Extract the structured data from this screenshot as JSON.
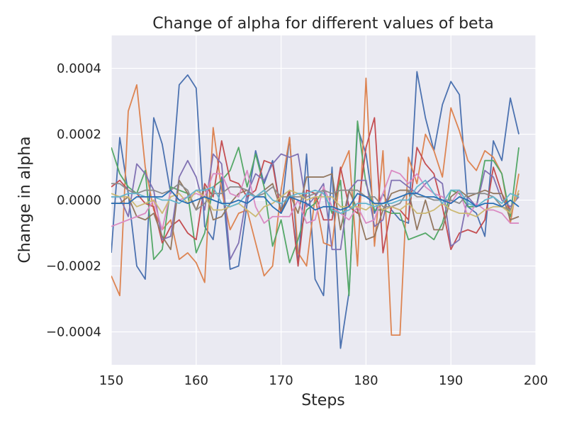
{
  "chart_data": {
    "type": "line",
    "title": "Change of  alpha for different values of beta",
    "xlabel": "Steps",
    "ylabel": "Change in alpha",
    "xlim": [
      150,
      200
    ],
    "ylim": [
      -0.0005,
      0.0005
    ],
    "xticks": [
      150,
      160,
      170,
      180,
      190,
      200
    ],
    "yticks": [
      -0.0004,
      -0.0002,
      0,
      0.0002,
      0.0004
    ],
    "ytick_labels": [
      "−0.0004",
      "−0.0002",
      "0.0000",
      "0.0002",
      "0.0004"
    ],
    "grid": true,
    "background": "#eaeaf2",
    "x": [
      150,
      151,
      152,
      153,
      154,
      155,
      156,
      157,
      158,
      159,
      160,
      161,
      162,
      163,
      164,
      165,
      166,
      167,
      168,
      169,
      170,
      171,
      172,
      173,
      174,
      175,
      176,
      177,
      178,
      179,
      180,
      181,
      182,
      183,
      184,
      185,
      186,
      187,
      188,
      189,
      190,
      191,
      192,
      193,
      194,
      195,
      196,
      197,
      198
    ],
    "series": [
      {
        "color": "#4c72b0",
        "values": [
          -0.00016,
          0.00019,
          2e-05,
          -0.0002,
          -0.00024,
          0.00025,
          0.00017,
          2e-05,
          0.00035,
          0.00038,
          0.00034,
          -8e-05,
          -0.00012,
          7e-05,
          -0.00021,
          -0.0002,
          -1e-05,
          0.00015,
          5e-05,
          0.00012,
          -4e-05,
          0.00019,
          -0.0002,
          0.00014,
          -0.00024,
          -0.00029,
          0.0001,
          -0.00045,
          -0.00028,
          0.00022,
          0.00014,
          -4e-05,
          2e-05,
          -3e-05,
          -6e-05,
          -7e-05,
          0.00039,
          0.00025,
          0.00015,
          0.00029,
          0.00036,
          0.00032,
          -2e-05,
          -4e-05,
          -0.00011,
          0.00018,
          0.00012,
          0.00031,
          0.0002
        ]
      },
      {
        "color": "#dd8452",
        "values": [
          -0.00023,
          -0.00029,
          0.00027,
          0.00035,
          0.0001,
          -3e-05,
          -9e-05,
          -6e-05,
          -0.00018,
          -0.00016,
          -0.00019,
          -0.00025,
          0.00022,
          3e-05,
          -9e-05,
          -4e-05,
          -3e-05,
          -0.00013,
          -0.00023,
          -0.0002,
          3e-05,
          0.00019,
          -0.00016,
          -0.0002,
          1e-05,
          -0.00013,
          -0.00014,
          9e-05,
          0.00015,
          -0.0002,
          0.00037,
          -0.00014,
          0.00015,
          -0.00041,
          -0.00041,
          0.00013,
          5e-05,
          0.0002,
          0.00015,
          7e-05,
          0.00028,
          0.00021,
          0.00012,
          9e-05,
          0.00015,
          0.00013,
          8e-05,
          -7e-05,
          8e-05
        ]
      },
      {
        "color": "#55a868",
        "values": [
          0.00016,
          8e-05,
          4e-05,
          2e-05,
          9e-05,
          -0.00018,
          -0.00015,
          4e-05,
          3e-05,
          2e-05,
          -0.00016,
          -0.0001,
          4e-05,
          6e-05,
          9e-05,
          0.00016,
          4e-05,
          0.00014,
          4e-05,
          -0.00014,
          -6e-05,
          -0.00019,
          -0.00012,
          -3e-05,
          -1e-05,
          3e-05,
          -4e-05,
          6e-05,
          -0.00029,
          0.00024,
          5e-05,
          -3e-05,
          -3e-05,
          -4e-05,
          -4e-05,
          -0.00012,
          -0.00011,
          -0.0001,
          -0.00012,
          -7e-05,
          3e-05,
          2e-05,
          -2e-05,
          -2e-05,
          0.00012,
          0.00012,
          8e-05,
          -5e-05,
          0.00016
        ]
      },
      {
        "color": "#c44e52",
        "values": [
          4e-05,
          6e-05,
          3e-05,
          2e-05,
          -1e-05,
          -2e-05,
          -0.00013,
          -8e-05,
          -6e-05,
          -0.0001,
          -0.00012,
          5e-05,
          1e-05,
          0.00018,
          6e-05,
          5e-05,
          1e-05,
          3e-05,
          0.00012,
          0.00011,
          -4e-05,
          3e-05,
          -0.0002,
          3e-05,
          2e-05,
          -6e-05,
          -6e-05,
          0.0001,
          -2e-05,
          -4e-05,
          0.00016,
          0.00025,
          -0.00016,
          -2e-05,
          -3e-05,
          -6e-05,
          0.00016,
          0.00011,
          8e-05,
          -2e-05,
          -0.00015,
          -0.0001,
          -9e-05,
          -0.0001,
          -6e-05,
          0.0001,
          2e-05,
          -3e-05,
          2e-05
        ]
      },
      {
        "color": "#8172b3",
        "values": [
          1e-05,
          1e-05,
          -5e-05,
          0.00011,
          8e-05,
          3e-05,
          -0.00012,
          -0.00011,
          7e-05,
          0.00012,
          7e-05,
          -3e-05,
          0.00014,
          0.00011,
          -0.00018,
          -0.00013,
          2e-05,
          8e-05,
          6e-05,
          0.00011,
          0.00014,
          0.00013,
          0.00014,
          -2e-05,
          1e-05,
          5e-05,
          -0.00015,
          -0.00015,
          3e-05,
          6e-05,
          6e-05,
          -8e-05,
          -6e-05,
          6e-05,
          6e-05,
          4e-05,
          2e-05,
          5e-05,
          7e-05,
          5e-05,
          -0.00014,
          -0.00012,
          1e-05,
          -2e-05,
          9e-05,
          7e-05,
          0,
          -2e-05,
          1e-05
        ]
      },
      {
        "color": "#937860",
        "values": [
          -1e-05,
          -1e-05,
          1e-05,
          -5e-05,
          -6e-05,
          -4e-05,
          -0.00011,
          -0.00015,
          6e-05,
          2e-05,
          -3e-05,
          4e-05,
          -6e-05,
          -5e-05,
          -1e-05,
          2e-05,
          3e-05,
          1e-05,
          3e-05,
          5e-05,
          -3e-05,
          2e-05,
          -4e-05,
          7e-05,
          7e-05,
          7e-05,
          8e-05,
          -9e-05,
          3e-05,
          -3e-05,
          -0.00012,
          -0.00011,
          -3e-05,
          2e-05,
          3e-05,
          3e-05,
          -9e-05,
          0,
          -9e-05,
          -9e-05,
          1e-05,
          3e-05,
          1e-05,
          2e-05,
          3e-05,
          2e-05,
          2e-05,
          -6e-05,
          -5e-05
        ]
      },
      {
        "color": "#da8bc3",
        "values": [
          -8e-05,
          -7e-05,
          -6e-05,
          -5e-05,
          -4e-05,
          0,
          -9e-05,
          3e-05,
          0,
          1e-05,
          2e-05,
          1e-05,
          8e-05,
          8e-05,
          2e-05,
          1e-05,
          9e-05,
          -2e-05,
          -7e-05,
          -5e-05,
          -5e-05,
          -5e-05,
          0,
          -7e-05,
          -6e-05,
          4e-05,
          -2e-05,
          -4e-05,
          -6e-05,
          -2e-05,
          -7e-05,
          -6e-05,
          2e-05,
          9e-05,
          8e-05,
          5e-05,
          8e-05,
          4e-05,
          2e-05,
          1e-05,
          -1e-05,
          3e-05,
          -5e-05,
          -1e-05,
          -3e-05,
          -3e-05,
          -4e-05,
          -7e-05,
          -7e-05
        ]
      },
      {
        "color": "#8c8c8c",
        "values": [
          5e-05,
          5e-05,
          3e-05,
          2e-05,
          3e-05,
          3e-05,
          2e-05,
          3e-05,
          5e-05,
          3e-05,
          -3e-05,
          -1e-05,
          2e-05,
          2e-05,
          4e-05,
          4e-05,
          3e-05,
          1e-05,
          2e-05,
          4e-05,
          1e-05,
          1e-05,
          1e-05,
          1e-05,
          2e-05,
          3e-05,
          2e-05,
          3e-05,
          3e-05,
          3e-05,
          1e-05,
          1e-05,
          -2e-05,
          -2e-05,
          -1e-05,
          3e-05,
          1e-05,
          1e-05,
          0,
          0,
          0,
          -1e-05,
          2e-05,
          2e-05,
          2e-05,
          1e-05,
          -2e-05,
          -3e-05,
          2e-05
        ]
      },
      {
        "color": "#ccb974",
        "values": [
          2e-05,
          1e-05,
          1e-05,
          -2e-05,
          -1e-05,
          0,
          -4e-05,
          1e-05,
          2e-05,
          -1e-05,
          3e-05,
          1e-05,
          -3e-05,
          -3e-05,
          -2e-05,
          -1e-05,
          -3e-05,
          -5e-05,
          -2e-05,
          -1e-05,
          1e-05,
          3e-05,
          2e-05,
          0,
          1e-05,
          1e-05,
          1e-05,
          -2e-05,
          -2e-05,
          -2e-05,
          -3e-05,
          -1e-05,
          -3e-05,
          -2e-05,
          -3e-05,
          -1e-05,
          -4e-05,
          -4e-05,
          -3e-05,
          -1e-05,
          -3e-05,
          -4e-05,
          -4e-05,
          -5e-05,
          -3e-05,
          -2e-05,
          -2e-05,
          -4e-05,
          3e-05
        ]
      },
      {
        "color": "#64b5cd",
        "values": [
          1e-05,
          1e-05,
          2e-05,
          2e-05,
          1e-05,
          1e-05,
          0,
          0,
          -1e-05,
          1e-05,
          3e-05,
          3e-05,
          4e-05,
          -1e-05,
          -2e-05,
          -1e-05,
          2e-05,
          1e-05,
          3e-05,
          0,
          -1e-05,
          1e-05,
          2e-05,
          2e-05,
          3e-05,
          2e-05,
          -3e-05,
          -4e-05,
          -3e-05,
          -1e-05,
          -1e-05,
          -2e-05,
          -1e-05,
          -1e-05,
          0,
          0,
          4e-05,
          6e-05,
          2e-05,
          -1e-05,
          3e-05,
          3e-05,
          -1e-05,
          -2e-05,
          0,
          1e-05,
          -1e-05,
          2e-05,
          1e-05
        ]
      },
      {
        "color": "#2a6fb5",
        "values": [
          -1e-05,
          -1e-05,
          -1e-05,
          1e-05,
          1e-05,
          1e-05,
          1e-05,
          3e-05,
          0,
          -1e-05,
          0,
          1e-05,
          0,
          -1e-05,
          -1e-05,
          0,
          -1e-05,
          1e-05,
          1e-05,
          -2e-05,
          -4e-05,
          1e-05,
          0,
          -1e-05,
          -3e-05,
          -2e-05,
          -2e-05,
          -3e-05,
          -2e-05,
          2e-05,
          1e-05,
          -1e-05,
          -1e-05,
          0,
          1e-05,
          2e-05,
          2e-05,
          1e-05,
          1e-05,
          0,
          -1e-05,
          1e-05,
          0,
          -2e-05,
          -1e-05,
          -1e-05,
          -2e-05,
          0,
          -2e-05
        ]
      }
    ]
  }
}
